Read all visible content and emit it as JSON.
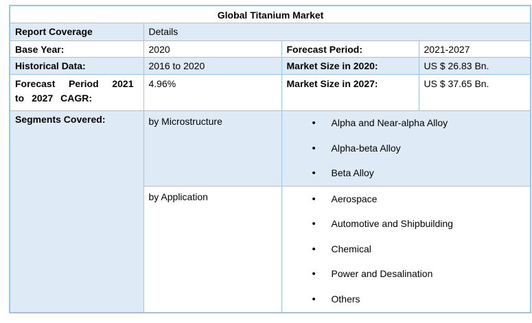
{
  "table": {
    "title": "Global Titanium Market",
    "bullet": "•",
    "colors": {
      "fill": "#deeaf6",
      "border": "#9dc3e6",
      "text": "#000000",
      "background": "#ffffff"
    },
    "coverage": {
      "label": "Report Coverage",
      "value": "Details"
    },
    "facts": [
      {
        "label1": "Base Year:",
        "value1": "2020",
        "label2": "Forecast Period:",
        "value2": "2021-2027"
      },
      {
        "label1": "Historical Data:",
        "value1": "2016 to 2020",
        "label2": "Market Size in 2020:",
        "value2": "US $ 26.83 Bn."
      },
      {
        "label1": "Forecast Period 2021 to 2027 CAGR:",
        "value1": "4.96%",
        "label2": "Market Size in 2027:",
        "value2": "US $ 37.65 Bn."
      }
    ],
    "segments": {
      "label": "Segments Covered:",
      "groups": [
        {
          "name": "by Microstructure",
          "items": [
            "Alpha and Near-alpha Alloy",
            "Alpha-beta Alloy",
            "Beta Alloy"
          ]
        },
        {
          "name": "by Application",
          "items": [
            "Aerospace",
            "Automotive and Shipbuilding",
            "Chemical",
            "Power and Desalination",
            "Others"
          ]
        }
      ]
    }
  }
}
